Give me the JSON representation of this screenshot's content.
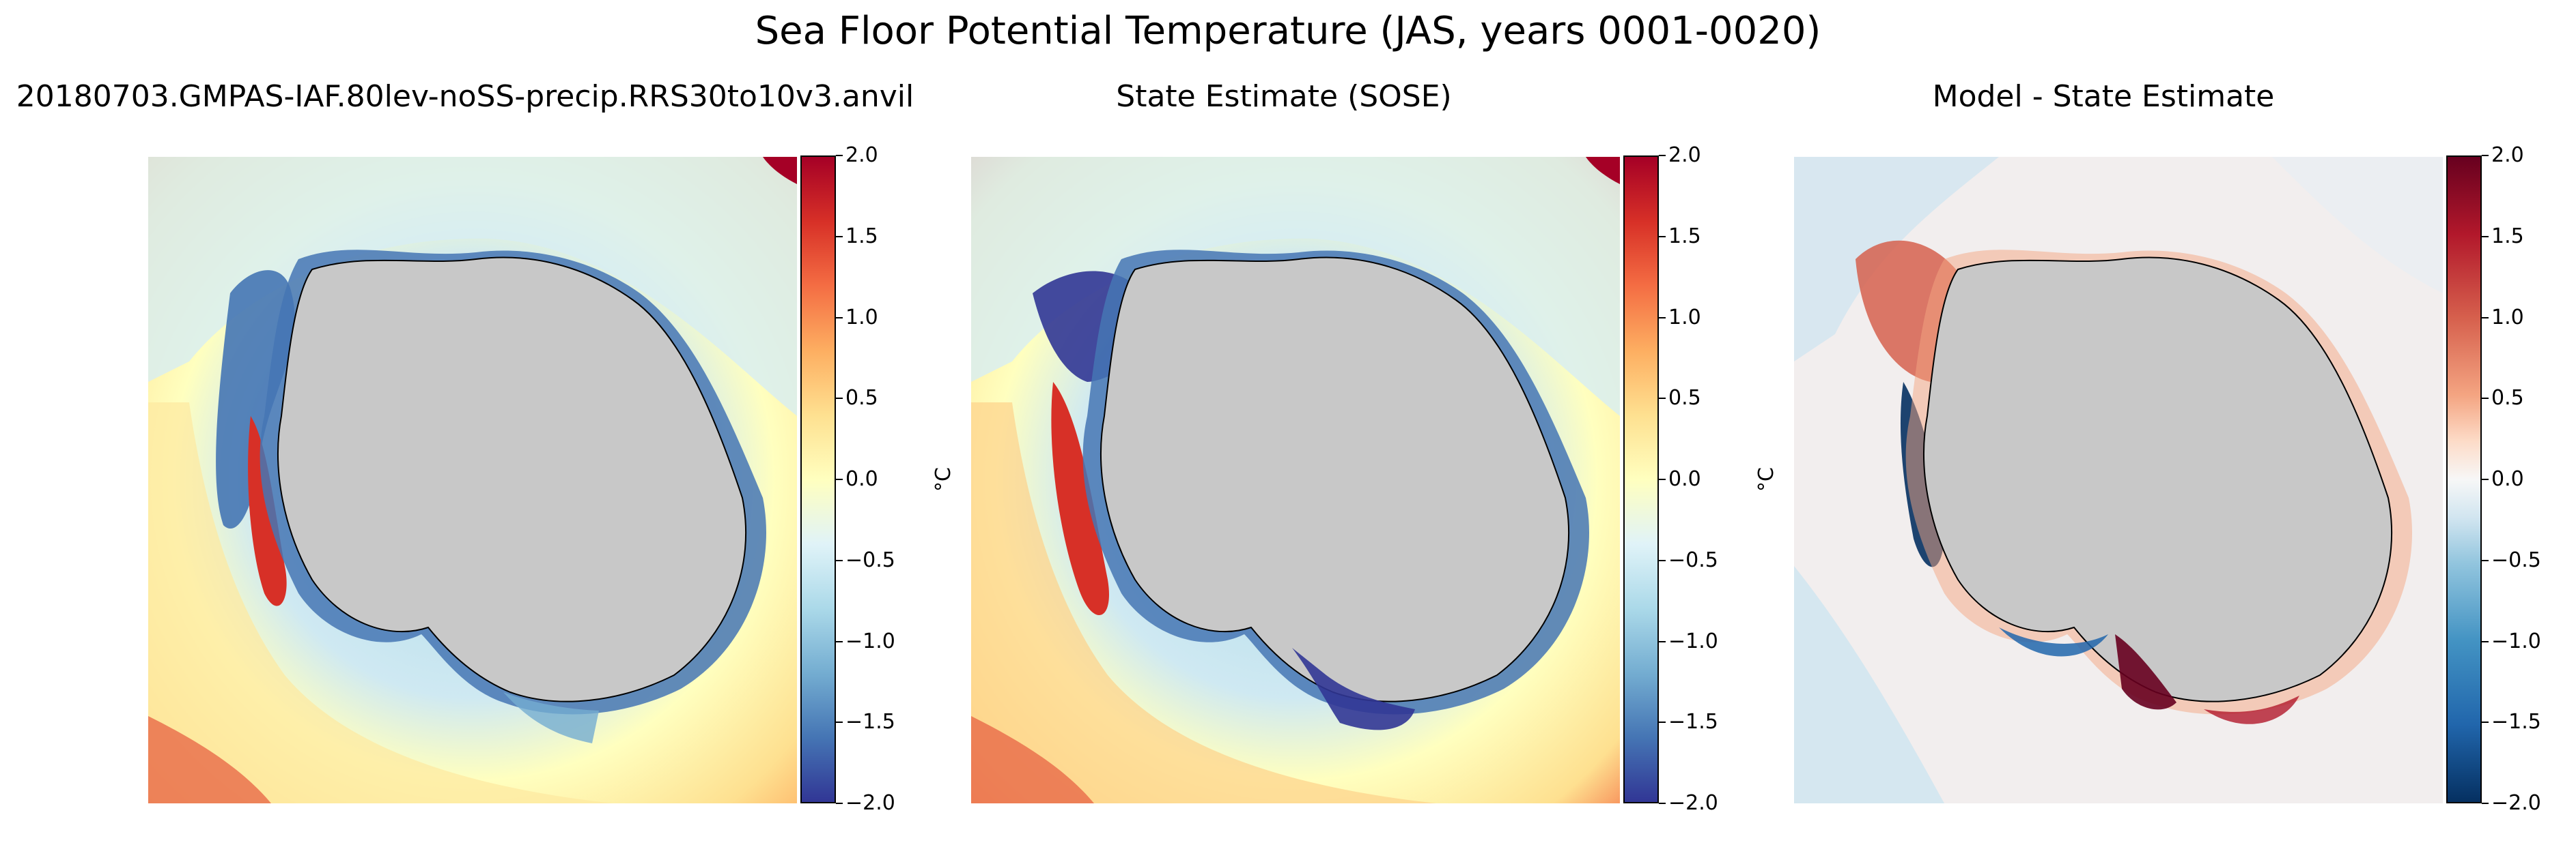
{
  "figure": {
    "suptitle": "Sea Floor Potential Temperature (JAS, years 0001-0020)"
  },
  "panels": [
    {
      "title": "20180703.GMPAS-IAF.80lev-noSS-precip.RRS30to10v3.anvil",
      "colormap": "RdYlBu_r",
      "colorbar": {
        "label": "°C",
        "min": -2.0,
        "max": 2.0,
        "ticks": [
          "2.0",
          "1.5",
          "1.0",
          "0.5",
          "0.0",
          "−0.5",
          "−1.0",
          "−1.5",
          "−2.0"
        ]
      }
    },
    {
      "title": "State Estimate (SOSE)",
      "colormap": "RdYlBu_r",
      "colorbar": {
        "label": "°C",
        "min": -2.0,
        "max": 2.0,
        "ticks": [
          "2.0",
          "1.5",
          "1.0",
          "0.5",
          "0.0",
          "−0.5",
          "−1.0",
          "−1.5",
          "−2.0"
        ]
      }
    },
    {
      "title": "Model - State Estimate",
      "colormap": "RdBu_r",
      "colorbar": {
        "label": "°C",
        "min": -2.0,
        "max": 2.0,
        "ticks": [
          "2.0",
          "1.5",
          "1.0",
          "0.5",
          "0.0",
          "−0.5",
          "−1.0",
          "−1.5",
          "−2.0"
        ]
      }
    }
  ],
  "colors": {
    "land": "#c8c8c8",
    "coastline": "#000000",
    "rdylbu": [
      "#a50026",
      "#d73027",
      "#f46d43",
      "#fdae61",
      "#fee090",
      "#ffffbf",
      "#e0f3f8",
      "#abd9e9",
      "#74add1",
      "#4575b4",
      "#313695"
    ],
    "rdbu": [
      "#67001f",
      "#b2182b",
      "#d6604d",
      "#f4a582",
      "#fddbc7",
      "#f7f7f7",
      "#d1e5f0",
      "#92c5de",
      "#4393c3",
      "#2166ac",
      "#053061"
    ]
  }
}
